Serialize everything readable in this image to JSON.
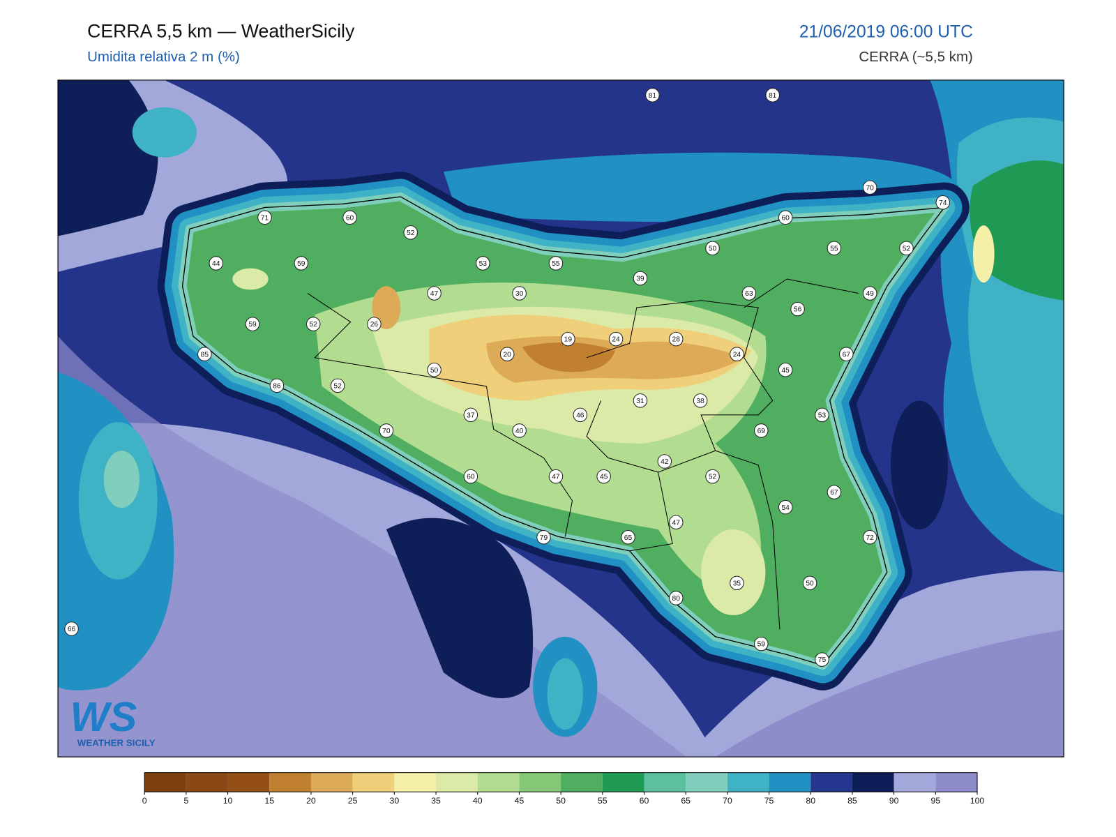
{
  "header": {
    "title": "CERRA 5,5 km — WeatherSicily",
    "subtitle": "Umidita relativa 2 m (%)",
    "valid_time": "21/06/2019 06:00 UTC",
    "model": "CERRA (~5,5 km)"
  },
  "stations": [
    81,
    81,
    70,
    74,
    71,
    60,
    52,
    60,
    44,
    59,
    53,
    55,
    50,
    55,
    52,
    39,
    47,
    30,
    63,
    49,
    56,
    59,
    52,
    26,
    19,
    24,
    28,
    85,
    20,
    24,
    67,
    50,
    45,
    86,
    52,
    31,
    38,
    37,
    46,
    53,
    70,
    40,
    69,
    42,
    60,
    47,
    45,
    52,
    67,
    54,
    47,
    79,
    65,
    72,
    35,
    50,
    80,
    66,
    59,
    75
  ],
  "colorbar": {
    "ticks": [
      0,
      5,
      10,
      15,
      20,
      25,
      30,
      35,
      40,
      45,
      50,
      55,
      60,
      65,
      70,
      75,
      80,
      85,
      90,
      95,
      100
    ],
    "colors": [
      "#7b400c",
      "#8a4814",
      "#944f17",
      "#c0802f",
      "#ddaa58",
      "#efcf7a",
      "#f5f0a8",
      "#dbeaa6",
      "#b2dc8f",
      "#85c877",
      "#4fae60",
      "#1f9a55",
      "#5cbfa0",
      "#80cfbc",
      "#3fb2c6",
      "#2190c3",
      "#24368f",
      "#0e1e58",
      "#a2a8da",
      "#8f8ccb"
    ]
  },
  "logo": {
    "mark": "WS",
    "name": "WEATHER SICILY"
  }
}
